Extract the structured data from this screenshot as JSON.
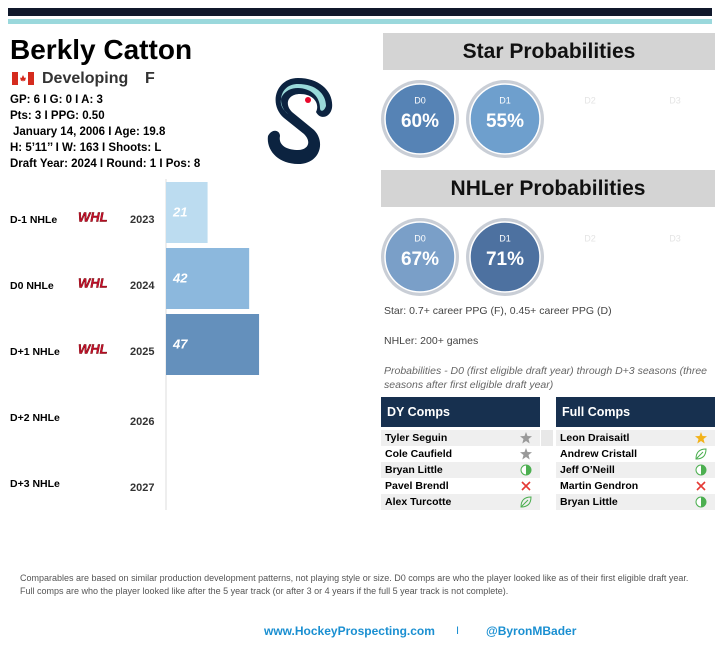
{
  "player": {
    "name": "Berkly Catton",
    "status": "Developing",
    "position": "F",
    "stats": [
      "GP: 6 I G: 0 I A: 3",
      "Pts: 3 I PPG: 0.50",
      "January 14, 2006 I Age: 19.8",
      "H: 5’11’’ I W: 163 I Shoots: L",
      "Draft Year: 2024 I Round: 1 I Pos: 8"
    ]
  },
  "chart_data": {
    "type": "bar",
    "orientation": "horizontal",
    "row_labels": [
      "D-1 NHLe",
      "D0 NHLe",
      "D+1 NHLe",
      "D+2 NHLe",
      "D+3 NHLe"
    ],
    "league_labels": [
      "WHL",
      "WHL",
      "WHL",
      null,
      null
    ],
    "categories": [
      "2023",
      "2024",
      "2025",
      "2026",
      "2027"
    ],
    "values": [
      21,
      42,
      47,
      null,
      null
    ],
    "colors": [
      "#bcdcf0",
      "#8cb8dd",
      "#6490bc",
      null,
      null
    ]
  },
  "star_probabilities": {
    "title": "Star Probabilities",
    "items": [
      {
        "label": "D0",
        "value": "60%",
        "color": "#5683b5"
      },
      {
        "label": "D1",
        "value": "55%",
        "color": "#6e9fcd"
      },
      {
        "label": "D2"
      },
      {
        "label": "D3"
      }
    ]
  },
  "nhler_probabilities": {
    "title": "NHLer Probabilities",
    "items": [
      {
        "label": "D0",
        "value": "67%",
        "color": "#7a9fc8"
      },
      {
        "label": "D1",
        "value": "71%",
        "color": "#4d71a0"
      },
      {
        "label": "D2"
      },
      {
        "label": "D3"
      }
    ]
  },
  "notes": [
    "Star: 0.7+ career PPG (F), 0.45+ career PPG (D)",
    "NHLer: 200+ games",
    "Probabilities - D0 (first eligible draft year) through D+3 seasons (three seasons after first eligible draft year)"
  ],
  "dy_comps": {
    "title": "DY Comps",
    "rows": [
      "Tyler Seguin",
      "Cole Caufield",
      "Bryan Little",
      "Pavel Brendl",
      "Alex Turcotte"
    ]
  },
  "full_comps": {
    "title": "Full Comps",
    "rows": [
      "Leon Draisaitl",
      "Andrew Cristall",
      "Jeff O’Neill",
      "Martin Gendron",
      "Bryan Little"
    ]
  },
  "footer": {
    "note": "Comparables are based on similar production development patterns, not playing style or size. D0 comps are who the player looked like as of their first eligible draft year. Full comps are who the player looked like after the 5 year track (or after 3 or 4 years if the full 5 year track is not complete).",
    "website": "www.HockeyProspecting.com",
    "separator": "I",
    "handle": "@ByronMBader"
  }
}
